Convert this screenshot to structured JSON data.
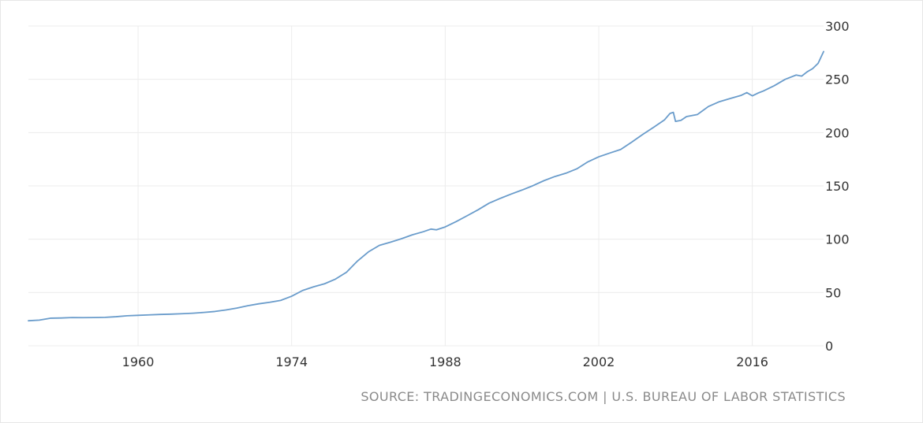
{
  "source_label": "SOURCE: TRADINGECONOMICS.COM | U.S. BUREAU OF LABOR STATISTICS",
  "colors": {
    "line": "#6a9ccb",
    "grid": "#ececec",
    "text": "#333333",
    "source": "#8a8a8a"
  },
  "chart_data": {
    "type": "line",
    "title": "",
    "xlabel": "",
    "ylabel": "",
    "grid": true,
    "y_axis_side": "right",
    "xlim": [
      1950,
      2022.5
    ],
    "ylim": [
      0,
      300
    ],
    "x_ticks": [
      1960,
      1974,
      1988,
      2002,
      2016
    ],
    "x_tick_labels": [
      "1960",
      "1974",
      "1988",
      "2002",
      "2016"
    ],
    "y_ticks": [
      0,
      50,
      100,
      150,
      200,
      250,
      300
    ],
    "y_tick_labels": [
      "0",
      "50",
      "100",
      "150",
      "200",
      "250",
      "300"
    ],
    "series": [
      {
        "color": "#6a9ccb",
        "points": [
          [
            1950.0,
            23.5
          ],
          [
            1951.0,
            24.1
          ],
          [
            1952.0,
            25.9
          ],
          [
            1953.0,
            26.1
          ],
          [
            1954.0,
            26.5
          ],
          [
            1955.0,
            26.4
          ],
          [
            1956.0,
            26.5
          ],
          [
            1957.0,
            26.7
          ],
          [
            1958.0,
            27.3
          ],
          [
            1959.0,
            28.2
          ],
          [
            1960.0,
            28.6
          ],
          [
            1961.0,
            29.0
          ],
          [
            1962.0,
            29.4
          ],
          [
            1963.0,
            29.7
          ],
          [
            1964.0,
            30.1
          ],
          [
            1965.0,
            30.6
          ],
          [
            1966.0,
            31.3
          ],
          [
            1967.0,
            32.2
          ],
          [
            1968.0,
            33.6
          ],
          [
            1969.0,
            35.4
          ],
          [
            1970.0,
            37.6
          ],
          [
            1971.0,
            39.4
          ],
          [
            1972.0,
            40.8
          ],
          [
            1973.0,
            42.6
          ],
          [
            1974.0,
            46.5
          ],
          [
            1975.0,
            51.9
          ],
          [
            1976.0,
            55.3
          ],
          [
            1977.0,
            58.2
          ],
          [
            1978.0,
            62.6
          ],
          [
            1979.0,
            69.0
          ],
          [
            1980.0,
            79.5
          ],
          [
            1981.0,
            88.1
          ],
          [
            1982.0,
            94.2
          ],
          [
            1983.0,
            97.2
          ],
          [
            1984.0,
            100.4
          ],
          [
            1985.0,
            104.1
          ],
          [
            1986.0,
            107.0
          ],
          [
            1986.7,
            109.5
          ],
          [
            1987.2,
            108.8
          ],
          [
            1988.0,
            111.5
          ],
          [
            1989.0,
            116.5
          ],
          [
            1990.0,
            122.0
          ],
          [
            1991.0,
            127.6
          ],
          [
            1992.0,
            133.8
          ],
          [
            1993.0,
            138.2
          ],
          [
            1994.0,
            142.3
          ],
          [
            1995.0,
            146.1
          ],
          [
            1996.0,
            150.2
          ],
          [
            1997.0,
            154.9
          ],
          [
            1998.0,
            158.8
          ],
          [
            1999.0,
            161.9
          ],
          [
            2000.0,
            166.0
          ],
          [
            2001.0,
            172.5
          ],
          [
            2002.0,
            177.3
          ],
          [
            2003.0,
            180.8
          ],
          [
            2004.0,
            184.2
          ],
          [
            2005.0,
            191.0
          ],
          [
            2006.0,
            198.2
          ],
          [
            2007.0,
            205.0
          ],
          [
            2008.0,
            212.0
          ],
          [
            2008.5,
            218.0
          ],
          [
            2008.8,
            219.0
          ],
          [
            2009.0,
            210.5
          ],
          [
            2009.5,
            211.5
          ],
          [
            2010.0,
            215.0
          ],
          [
            2011.0,
            217.0
          ],
          [
            2012.0,
            224.5
          ],
          [
            2013.0,
            229.0
          ],
          [
            2014.0,
            232.0
          ],
          [
            2015.0,
            235.0
          ],
          [
            2015.5,
            237.5
          ],
          [
            2016.0,
            234.5
          ],
          [
            2016.5,
            237.0
          ],
          [
            2017.0,
            239.0
          ],
          [
            2018.0,
            244.0
          ],
          [
            2019.0,
            250.0
          ],
          [
            2020.0,
            254.0
          ],
          [
            2020.5,
            253.0
          ],
          [
            2021.0,
            257.0
          ],
          [
            2021.5,
            260.0
          ],
          [
            2022.0,
            265.0
          ],
          [
            2022.5,
            276.0
          ]
        ]
      }
    ]
  }
}
